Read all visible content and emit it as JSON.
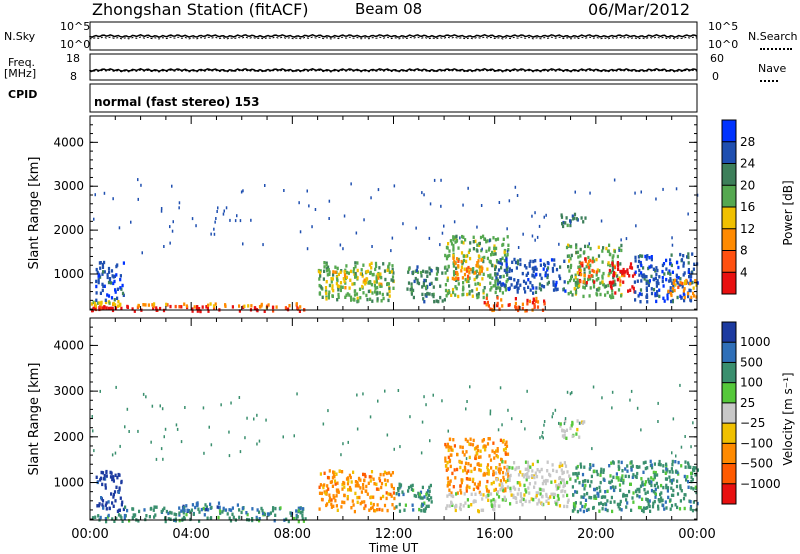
{
  "header": {
    "station": "Zhongshan Station (fitACF)",
    "beam": "Beam 08",
    "date": "06/Mar/2012"
  },
  "top_panels": {
    "nsky_label": "N.Sky",
    "nsky_ticks": [
      "10^5",
      "10^0"
    ],
    "nsearch_label": "N.Search",
    "nsearch_ticks": [
      "10^5",
      "10^0"
    ],
    "freq_label": "Freq.",
    "freq_unit": "[MHz]",
    "freq_ticks": [
      "18",
      "8"
    ],
    "nave_label": "Nave",
    "nave_ticks": [
      "60",
      "0"
    ],
    "cpid_label": "CPID",
    "cpid_text": "normal (fast stereo) 153"
  },
  "chart_data": [
    {
      "type": "heatmap",
      "name": "power",
      "ylabel": "Slant Range [km]",
      "yticks": [
        1000,
        2000,
        3000,
        4000
      ],
      "ylim": [
        180,
        4600
      ],
      "xlim": [
        0,
        24
      ],
      "colorbar": {
        "label": "Power [dB]",
        "ticks": [
          "4",
          "8",
          "12",
          "16",
          "20",
          "24",
          "28"
        ],
        "colors": [
          "#0033ff",
          "#1f4fb0",
          "#3d7f5a",
          "#55a850",
          "#f0c000",
          "#ff8a00",
          "#ff5010",
          "#e81010"
        ]
      },
      "grid": false
    },
    {
      "type": "heatmap",
      "name": "velocity",
      "ylabel": "Slant Range [km]",
      "yticks": [
        1000,
        2000,
        3000,
        4000
      ],
      "ylim": [
        180,
        4600
      ],
      "xlim": [
        0,
        24
      ],
      "xlabel": "Time UT",
      "xticks": [
        "00:00",
        "04:00",
        "08:00",
        "12:00",
        "16:00",
        "20:00",
        "00:00"
      ],
      "colorbar": {
        "label": "Velocity [m s⁻¹]",
        "ticks": [
          "1000",
          "500",
          "100",
          "25",
          "−25",
          "−100",
          "−500",
          "−1000"
        ],
        "colors": [
          "#1c3aa0",
          "#2f6fb8",
          "#3a8f6e",
          "#55c83a",
          "#c8c8c8",
          "#f0c000",
          "#ff8a00",
          "#ff5a00",
          "#e81010"
        ]
      },
      "grid": false
    }
  ],
  "power_scatter": [
    {
      "t": 0.0,
      "t2": 0.8,
      "r0": 200,
      "r1": 300,
      "c": 7
    },
    {
      "t": 0.8,
      "t2": 8.5,
      "r0": 180,
      "r1": 300,
      "c": 7
    },
    {
      "t": 0.0,
      "t2": 1.2,
      "r0": 300,
      "r1": 420,
      "c": 4
    },
    {
      "t": 0.2,
      "t2": 1.3,
      "r0": 420,
      "r1": 1300,
      "c": 1
    },
    {
      "t": 1.2,
      "t2": 8.5,
      "r0": 280,
      "r1": 360,
      "c": 5
    },
    {
      "t": 9.0,
      "t2": 12.0,
      "r0": 400,
      "r1": 1300,
      "c": 3
    },
    {
      "t": 9.5,
      "t2": 11.5,
      "r0": 700,
      "r1": 1100,
      "c": 4
    },
    {
      "t": 12.5,
      "t2": 14.0,
      "r0": 400,
      "r1": 1200,
      "c": 2
    },
    {
      "t": 14.0,
      "t2": 16.5,
      "r0": 500,
      "r1": 1900,
      "c": 3
    },
    {
      "t": 14.3,
      "t2": 15.5,
      "r0": 900,
      "r1": 1500,
      "c": 5
    },
    {
      "t": 15.5,
      "t2": 18.0,
      "r0": 180,
      "r1": 500,
      "c": 6
    },
    {
      "t": 16.0,
      "t2": 18.8,
      "r0": 600,
      "r1": 1400,
      "c": 1
    },
    {
      "t": 18.8,
      "t2": 21.0,
      "r0": 500,
      "r1": 1700,
      "c": 3
    },
    {
      "t": 19.3,
      "t2": 20.0,
      "r0": 800,
      "r1": 1400,
      "c": 6
    },
    {
      "t": 20.5,
      "t2": 21.5,
      "r0": 600,
      "r1": 1300,
      "c": 7
    },
    {
      "t": 21.5,
      "t2": 24.0,
      "r0": 400,
      "r1": 1500,
      "c": 1
    },
    {
      "t": 22.8,
      "t2": 24.0,
      "r0": 500,
      "r1": 900,
      "c": 5
    },
    {
      "t": 18.6,
      "t2": 19.6,
      "r0": 2100,
      "r1": 2400,
      "c": 2
    }
  ],
  "velocity_scatter": [
    {
      "t": 0.0,
      "t2": 8.5,
      "r0": 180,
      "r1": 330,
      "c": 2
    },
    {
      "t": 0.2,
      "t2": 1.3,
      "r0": 400,
      "r1": 1300,
      "c": 0
    },
    {
      "t": 1.2,
      "t2": 8.5,
      "r0": 330,
      "r1": 500,
      "c": 2
    },
    {
      "t": 3.5,
      "t2": 6.0,
      "r0": 400,
      "r1": 600,
      "c": 1
    },
    {
      "t": 9.0,
      "t2": 12.0,
      "r0": 400,
      "r1": 1300,
      "c": 6
    },
    {
      "t": 12.0,
      "t2": 13.5,
      "r0": 400,
      "r1": 1000,
      "c": 2
    },
    {
      "t": 14.0,
      "t2": 16.5,
      "r0": 800,
      "r1": 2000,
      "c": 6
    },
    {
      "t": 14.0,
      "t2": 16.0,
      "r0": 400,
      "r1": 800,
      "c": 4
    },
    {
      "t": 16.0,
      "t2": 19.0,
      "r0": 500,
      "r1": 1500,
      "c": 4
    },
    {
      "t": 19.0,
      "t2": 24.0,
      "r0": 400,
      "r1": 1500,
      "c": 2
    },
    {
      "t": 18.5,
      "t2": 19.5,
      "r0": 2000,
      "r1": 2400,
      "c": 4
    }
  ]
}
